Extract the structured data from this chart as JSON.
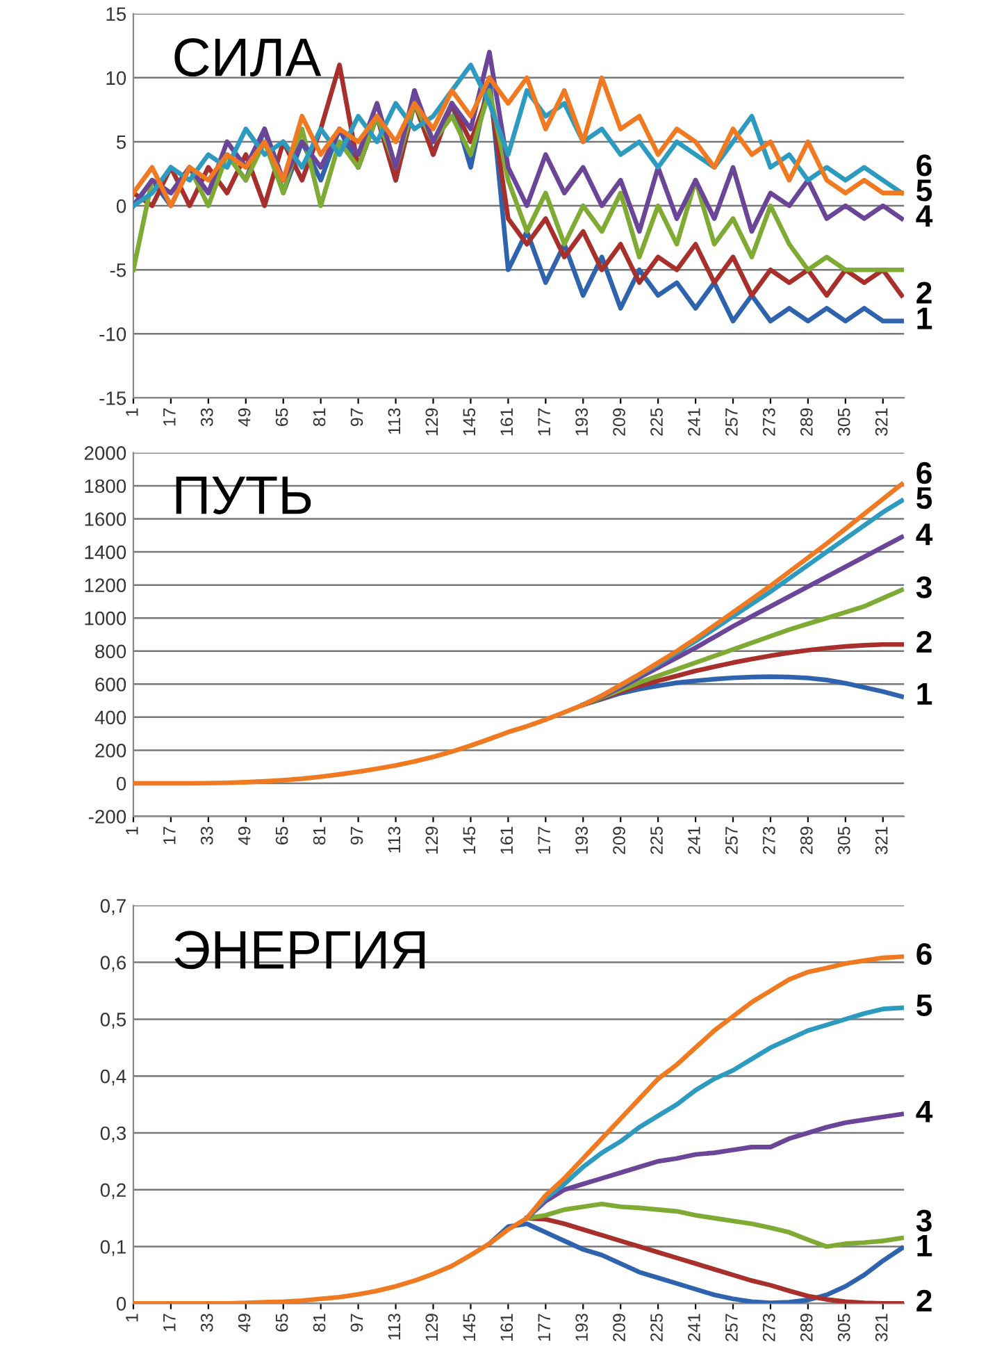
{
  "chart_data": [
    {
      "type": "line",
      "title": "СИЛА",
      "grid": "y",
      "legend": false,
      "x": [
        1,
        9,
        17,
        25,
        33,
        41,
        49,
        57,
        65,
        73,
        81,
        89,
        97,
        105,
        113,
        121,
        129,
        137,
        145,
        153,
        161,
        169,
        177,
        185,
        193,
        201,
        209,
        217,
        225,
        233,
        241,
        249,
        257,
        265,
        273,
        281,
        289,
        297,
        305,
        313,
        321,
        329
      ],
      "xlim": [
        1,
        330
      ],
      "xticks": [
        1,
        17,
        33,
        49,
        65,
        81,
        97,
        113,
        129,
        145,
        161,
        177,
        193,
        209,
        225,
        241,
        257,
        273,
        289,
        305,
        321
      ],
      "ylim": [
        -15,
        15
      ],
      "yticks": [
        -15,
        -10,
        -5,
        0,
        5,
        10,
        15
      ],
      "series": [
        {
          "name": "1",
          "color": "#2f63ad",
          "values": [
            0,
            2,
            0,
            3,
            1,
            4,
            2,
            6,
            1,
            5,
            2,
            6,
            3,
            7,
            2,
            9,
            4,
            8,
            3,
            10,
            -5,
            -2,
            -6,
            -3,
            -7,
            -4,
            -8,
            -5,
            -7,
            -6,
            -8,
            -6,
            -9,
            -7,
            -9,
            -8,
            -9,
            -8,
            -9,
            -8,
            -9,
            -9
          ]
        },
        {
          "name": "2",
          "color": "#a8302c",
          "values": [
            1,
            0,
            3,
            0,
            3,
            1,
            4,
            0,
            5,
            2,
            6,
            11,
            3,
            7,
            2,
            8,
            4,
            8,
            5,
            9,
            -1,
            -3,
            -1,
            -4,
            -2,
            -5,
            -3,
            -6,
            -4,
            -5,
            -3,
            -6,
            -4,
            -7,
            -5,
            -6,
            -5,
            -7,
            -5,
            -6,
            -5,
            -7
          ]
        },
        {
          "color": "#7fab35",
          "values": [
            -5,
            2,
            1,
            3,
            0,
            4,
            2,
            5,
            1,
            6,
            0,
            5,
            3,
            7,
            3,
            8,
            5,
            7,
            4,
            9,
            2,
            -2,
            1,
            -3,
            0,
            -2,
            1,
            -4,
            0,
            -3,
            2,
            -3,
            -1,
            -4,
            0,
            -3,
            -5,
            -4,
            -5,
            -5,
            -5,
            -5
          ]
        },
        {
          "name": "4",
          "color": "#6a4598",
          "values": [
            0,
            2,
            1,
            3,
            1,
            5,
            3,
            6,
            2,
            5,
            3,
            6,
            4,
            8,
            3,
            9,
            5,
            8,
            6,
            12,
            3,
            0,
            4,
            1,
            3,
            0,
            2,
            -2,
            3,
            -1,
            2,
            -1,
            3,
            -2,
            1,
            0,
            2,
            -1,
            0,
            -1,
            0,
            -1
          ]
        },
        {
          "name": "5",
          "color": "#2d9ac0",
          "values": [
            0,
            1,
            3,
            2,
            4,
            3,
            6,
            4,
            5,
            3,
            6,
            4,
            7,
            5,
            8,
            6,
            7,
            9,
            11,
            8,
            4,
            9,
            7,
            8,
            5,
            6,
            4,
            5,
            3,
            5,
            4,
            3,
            5,
            7,
            3,
            4,
            2,
            3,
            2,
            3,
            2,
            1
          ]
        },
        {
          "name": "6",
          "color": "#f07a22",
          "values": [
            1,
            3,
            0,
            3,
            2,
            4,
            3,
            5,
            2,
            7,
            4,
            6,
            5,
            7,
            5,
            8,
            6,
            9,
            7,
            10,
            8,
            10,
            6,
            9,
            5,
            10,
            6,
            7,
            4,
            6,
            5,
            3,
            6,
            4,
            5,
            2,
            5,
            2,
            1,
            2,
            1,
            1
          ]
        }
      ]
    },
    {
      "type": "line",
      "title": "ПУТЬ",
      "grid": "y",
      "legend": false,
      "x": [
        1,
        9,
        17,
        25,
        33,
        41,
        49,
        57,
        65,
        73,
        81,
        89,
        97,
        105,
        113,
        121,
        129,
        137,
        145,
        153,
        161,
        169,
        177,
        185,
        193,
        201,
        209,
        217,
        225,
        233,
        241,
        249,
        257,
        265,
        273,
        281,
        289,
        297,
        305,
        313,
        321,
        329
      ],
      "xlim": [
        1,
        330
      ],
      "xticks": [
        1,
        17,
        33,
        49,
        65,
        81,
        97,
        113,
        129,
        145,
        161,
        177,
        193,
        209,
        225,
        241,
        257,
        273,
        289,
        305,
        321
      ],
      "ylim": [
        -200,
        2000
      ],
      "yticks": [
        -200,
        0,
        200,
        400,
        600,
        800,
        1000,
        1200,
        1400,
        1600,
        1800,
        2000
      ],
      "series": [
        {
          "name": "1",
          "color": "#2f63ad",
          "values": [
            null,
            null,
            null,
            null,
            null,
            null,
            null,
            null,
            null,
            null,
            null,
            null,
            null,
            null,
            null,
            null,
            null,
            null,
            null,
            null,
            null,
            null,
            null,
            null,
            475,
            510,
            545,
            570,
            590,
            608,
            620,
            630,
            638,
            643,
            645,
            643,
            637,
            625,
            605,
            580,
            555,
            525
          ]
        },
        {
          "name": "2",
          "color": "#a8302c",
          "values": [
            null,
            null,
            null,
            null,
            null,
            null,
            null,
            null,
            null,
            null,
            null,
            null,
            null,
            null,
            null,
            null,
            null,
            null,
            null,
            null,
            null,
            null,
            null,
            null,
            475,
            515,
            555,
            590,
            620,
            650,
            680,
            705,
            730,
            752,
            772,
            790,
            805,
            818,
            828,
            835,
            840,
            840
          ]
        },
        {
          "name": "3",
          "color": "#7fab35",
          "values": [
            null,
            null,
            null,
            null,
            null,
            null,
            null,
            null,
            null,
            null,
            null,
            null,
            null,
            null,
            null,
            null,
            null,
            null,
            null,
            null,
            null,
            null,
            null,
            null,
            475,
            520,
            565,
            610,
            650,
            690,
            730,
            770,
            810,
            850,
            890,
            930,
            965,
            1000,
            1035,
            1070,
            1120,
            1170
          ]
        },
        {
          "name": "4",
          "color": "#6a4598",
          "values": [
            null,
            null,
            null,
            null,
            null,
            null,
            null,
            null,
            null,
            null,
            null,
            null,
            null,
            null,
            null,
            null,
            null,
            null,
            null,
            null,
            null,
            null,
            null,
            null,
            475,
            525,
            580,
            640,
            700,
            760,
            820,
            885,
            950,
            1010,
            1070,
            1130,
            1190,
            1250,
            1310,
            1370,
            1430,
            1490
          ]
        },
        {
          "name": "5",
          "color": "#2d9ac0",
          "values": [
            null,
            null,
            null,
            null,
            null,
            null,
            null,
            null,
            null,
            null,
            null,
            null,
            null,
            null,
            null,
            null,
            null,
            null,
            null,
            null,
            null,
            null,
            null,
            null,
            475,
            530,
            590,
            655,
            720,
            790,
            860,
            935,
            1010,
            1085,
            1160,
            1240,
            1320,
            1400,
            1480,
            1560,
            1640,
            1710
          ]
        },
        {
          "name": "6",
          "color": "#f07a22",
          "values": [
            0,
            0,
            0,
            0,
            1,
            3,
            7,
            12,
            19,
            28,
            40,
            54,
            70,
            88,
            108,
            132,
            160,
            192,
            228,
            268,
            310,
            345,
            385,
            430,
            475,
            530,
            595,
            660,
            730,
            800,
            875,
            955,
            1035,
            1115,
            1195,
            1280,
            1365,
            1450,
            1540,
            1630,
            1720,
            1810
          ]
        }
      ]
    },
    {
      "type": "line",
      "title": "ЭНЕРГИЯ",
      "grid": "y",
      "legend": false,
      "x": [
        1,
        9,
        17,
        25,
        33,
        41,
        49,
        57,
        65,
        73,
        81,
        89,
        97,
        105,
        113,
        121,
        129,
        137,
        145,
        153,
        161,
        169,
        177,
        185,
        193,
        201,
        209,
        217,
        225,
        233,
        241,
        249,
        257,
        265,
        273,
        281,
        289,
        297,
        305,
        313,
        321,
        329
      ],
      "xlim": [
        1,
        330
      ],
      "xticks": [
        1,
        17,
        33,
        49,
        65,
        81,
        97,
        113,
        129,
        145,
        161,
        177,
        193,
        209,
        225,
        241,
        257,
        273,
        289,
        305,
        321
      ],
      "ylim": [
        0,
        0.7
      ],
      "yticks": [
        0,
        {
          "value": 0.1,
          "label": "0,1"
        },
        {
          "value": 0.2,
          "label": "0,2"
        },
        {
          "value": 0.3,
          "label": "0,3"
        },
        {
          "value": 0.4,
          "label": "0,4"
        },
        {
          "value": 0.5,
          "label": "0,5"
        },
        {
          "value": 0.6,
          "label": "0,6"
        },
        {
          "value": 0.7,
          "label": "0,7"
        }
      ],
      "series": [
        {
          "name": "1",
          "color": "#2f63ad",
          "values": [
            null,
            null,
            null,
            null,
            null,
            null,
            null,
            null,
            null,
            null,
            null,
            null,
            null,
            null,
            null,
            null,
            null,
            null,
            null,
            0.105,
            0.135,
            0.14,
            0.125,
            0.11,
            0.095,
            0.085,
            0.07,
            0.055,
            0.045,
            0.035,
            0.025,
            0.015,
            0.008,
            0.003,
            0.001,
            0.002,
            0.006,
            0.015,
            0.03,
            0.05,
            0.075,
            0.097
          ]
        },
        {
          "name": "2",
          "color": "#a8302c",
          "values": [
            null,
            null,
            null,
            null,
            null,
            null,
            null,
            null,
            null,
            null,
            null,
            null,
            null,
            null,
            null,
            null,
            null,
            null,
            null,
            null,
            null,
            0.15,
            0.148,
            0.14,
            0.13,
            0.12,
            0.11,
            0.1,
            0.09,
            0.08,
            0.07,
            0.06,
            0.05,
            0.04,
            0.032,
            0.022,
            0.013,
            0.007,
            0.003,
            0.001,
            0,
            0
          ]
        },
        {
          "name": "3",
          "color": "#7fab35",
          "values": [
            null,
            null,
            null,
            null,
            null,
            null,
            null,
            null,
            null,
            null,
            null,
            null,
            null,
            null,
            null,
            null,
            null,
            null,
            null,
            null,
            null,
            0.15,
            0.155,
            0.165,
            0.17,
            0.175,
            0.17,
            0.168,
            0.165,
            0.162,
            0.155,
            0.15,
            0.145,
            0.14,
            0.133,
            0.125,
            0.112,
            0.1,
            0.105,
            0.107,
            0.11,
            0.115
          ]
        },
        {
          "name": "4",
          "color": "#6a4598",
          "values": [
            null,
            null,
            null,
            null,
            null,
            null,
            null,
            null,
            null,
            null,
            null,
            null,
            null,
            null,
            null,
            null,
            null,
            null,
            null,
            null,
            null,
            0.15,
            0.18,
            0.2,
            0.21,
            0.22,
            0.23,
            0.24,
            0.25,
            0.255,
            0.262,
            0.265,
            0.27,
            0.275,
            0.275,
            0.29,
            0.3,
            0.31,
            0.318,
            0.323,
            0.328,
            0.333
          ]
        },
        {
          "name": "5",
          "color": "#2d9ac0",
          "values": [
            null,
            null,
            null,
            null,
            null,
            null,
            null,
            null,
            null,
            null,
            null,
            null,
            null,
            null,
            null,
            null,
            null,
            null,
            null,
            null,
            null,
            0.15,
            0.185,
            0.21,
            0.24,
            0.265,
            0.285,
            0.31,
            0.33,
            0.35,
            0.375,
            0.395,
            0.41,
            0.43,
            0.45,
            0.465,
            0.48,
            0.49,
            0.5,
            0.51,
            0.518,
            0.52
          ]
        },
        {
          "name": "6",
          "color": "#f07a22",
          "values": [
            0,
            0,
            0,
            0,
            0,
            0,
            0.001,
            0.002,
            0.003,
            0.005,
            0.008,
            0.011,
            0.016,
            0.022,
            0.03,
            0.04,
            0.052,
            0.066,
            0.085,
            0.105,
            0.13,
            0.15,
            0.19,
            0.22,
            0.255,
            0.29,
            0.325,
            0.36,
            0.395,
            0.42,
            0.45,
            0.48,
            0.505,
            0.53,
            0.55,
            0.57,
            0.583,
            0.59,
            0.598,
            0.603,
            0.608,
            0.61
          ]
        }
      ]
    }
  ]
}
